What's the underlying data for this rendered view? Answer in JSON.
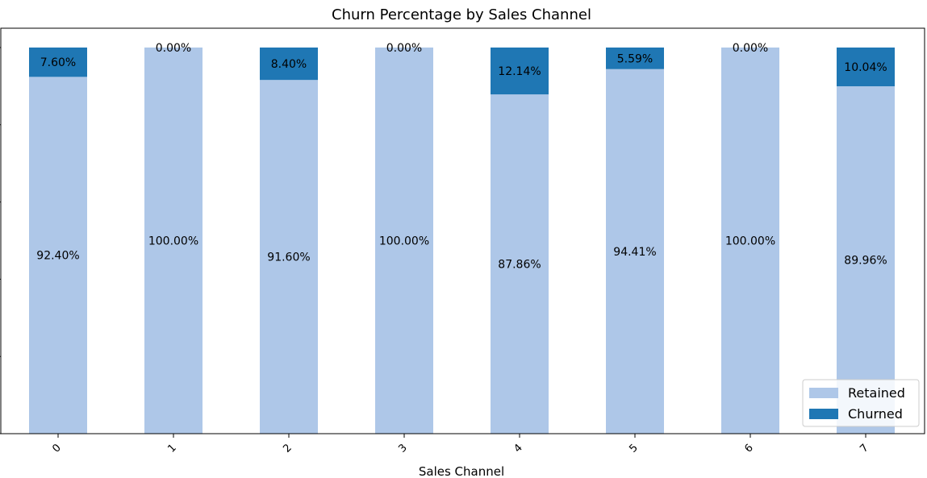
{
  "chart_data": {
    "type": "bar",
    "stacked": true,
    "title": "Churn Percentage by Sales Channel",
    "xlabel": "Sales Channel",
    "ylabel": "",
    "ylim": [
      0,
      105
    ],
    "categories": [
      "0",
      "1",
      "2",
      "3",
      "4",
      "5",
      "6",
      "7"
    ],
    "series": [
      {
        "name": "Retained",
        "color": "#aec7e8",
        "values": [
          92.4,
          100.0,
          91.6,
          100.0,
          87.86,
          94.41,
          100.0,
          89.96
        ],
        "labels": [
          "92.40%",
          "100.00%",
          "91.60%",
          "100.00%",
          "87.86%",
          "94.41%",
          "100.00%",
          "89.96%"
        ]
      },
      {
        "name": "Churned",
        "color": "#1f77b4",
        "values": [
          7.6,
          0.0,
          8.4,
          0.0,
          12.14,
          5.59,
          0.0,
          10.04
        ],
        "labels": [
          "7.60%",
          "0.00%",
          "8.40%",
          "0.00%",
          "12.14%",
          "5.59%",
          "0.00%",
          "10.04%"
        ]
      }
    ],
    "legend_position": "lower-right",
    "tick_label_rotation": 45,
    "grid": false
  }
}
